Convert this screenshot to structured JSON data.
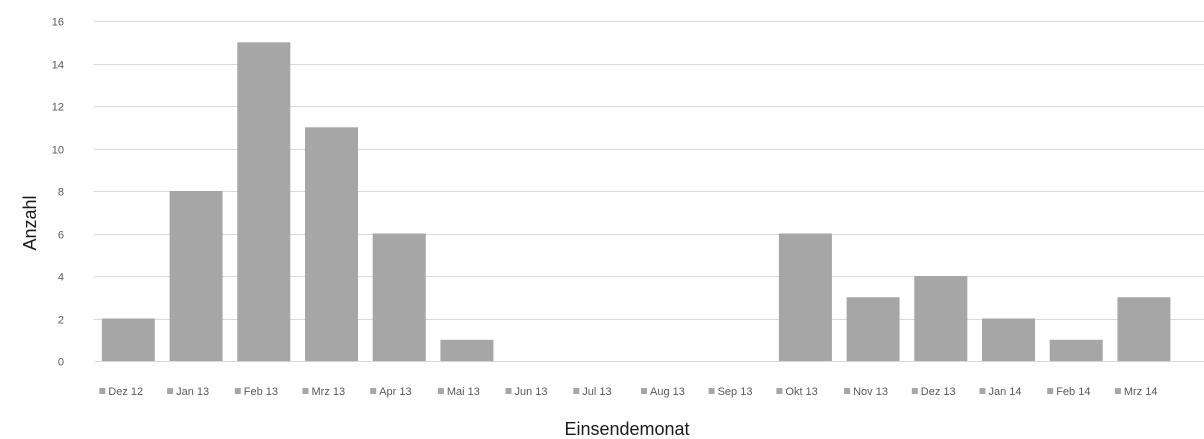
{
  "chart_data": {
    "type": "bar",
    "categories": [
      "Dez 12",
      "Jan 13",
      "Feb 13",
      "Mrz 13",
      "Apr 13",
      "Mai 13",
      "Jun 13",
      "Jul 13",
      "Aug 13",
      "Sep 13",
      "Okt 13",
      "Nov 13",
      "Dez 13",
      "Jan 14",
      "Feb 14",
      "Mrz 14"
    ],
    "values": [
      2,
      8,
      15,
      11,
      6,
      1,
      0,
      0,
      0,
      0,
      6,
      3,
      4,
      2,
      1,
      3
    ],
    "xlabel": "Einsendemonat",
    "ylabel": "Anzahl",
    "ylim": [
      0,
      16
    ],
    "yticks": [
      "0",
      "2",
      "4",
      "6",
      "8",
      "10",
      "12",
      "14",
      "16"
    ],
    "grid": true,
    "legend_position": "bottom",
    "bar_color": "#a6a6a6",
    "grid_color": "#d9d9d9"
  }
}
